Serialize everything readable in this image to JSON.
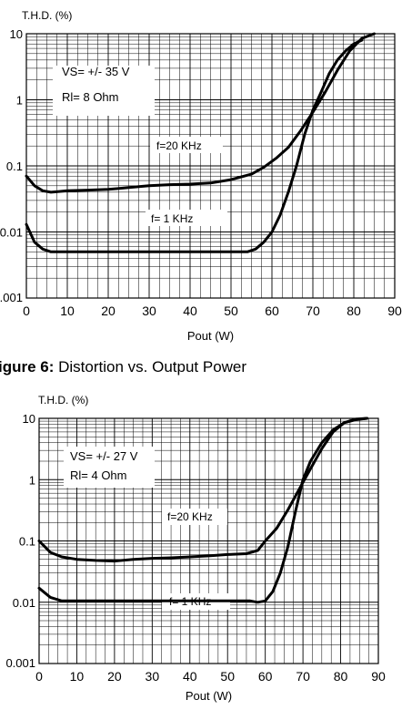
{
  "caption": {
    "label": "igure 6:",
    "text": " Distortion vs. Output Power"
  },
  "chart_data": [
    {
      "type": "line",
      "ylabel": "T.H.D.  (%)",
      "xlabel": "Pout  (W)",
      "xlim": [
        0,
        90
      ],
      "ylim": [
        0.001,
        10
      ],
      "yscale": "log",
      "grid": true,
      "xticks": [
        "0",
        "10",
        "20",
        "30",
        "40",
        "50",
        "60",
        "70",
        "80",
        "90"
      ],
      "yticks": [
        "0.001",
        "0.01",
        "0.1",
        "1",
        "10"
      ],
      "annotations": [
        "VS=  +/- 35 V",
        "Rl=  8 Ohm"
      ],
      "series": [
        {
          "name": "f=20 KHz",
          "x": [
            0,
            2,
            4,
            6,
            8,
            10,
            15,
            20,
            25,
            30,
            35,
            40,
            45,
            50,
            55,
            58,
            61,
            64,
            67,
            70,
            73,
            76,
            79,
            82,
            85
          ],
          "y": [
            0.07,
            0.05,
            0.042,
            0.04,
            0.041,
            0.042,
            0.043,
            0.044,
            0.047,
            0.05,
            0.052,
            0.053,
            0.055,
            0.062,
            0.075,
            0.095,
            0.13,
            0.19,
            0.34,
            0.65,
            1.3,
            2.8,
            5.5,
            8.5,
            10
          ]
        },
        {
          "name": "f= 1 KHz",
          "x": [
            0,
            2,
            4,
            6,
            10,
            20,
            30,
            40,
            50,
            54,
            56,
            58,
            60,
            62,
            64,
            66,
            68,
            70,
            72,
            74,
            76,
            78,
            80,
            82
          ],
          "y": [
            0.013,
            0.007,
            0.0055,
            0.005,
            0.005,
            0.005,
            0.005,
            0.005,
            0.005,
            0.005,
            0.0055,
            0.007,
            0.01,
            0.018,
            0.04,
            0.1,
            0.3,
            0.7,
            1.3,
            2.5,
            4,
            5.5,
            7,
            8
          ]
        }
      ]
    },
    {
      "type": "line",
      "ylabel": "T.H.D.  (%)",
      "xlabel": "Pout  (W)",
      "xlim": [
        0,
        90
      ],
      "ylim": [
        0.001,
        10
      ],
      "yscale": "log",
      "grid": true,
      "xticks": [
        "0",
        "10",
        "20",
        "30",
        "40",
        "50",
        "60",
        "70",
        "80",
        "90"
      ],
      "yticks": [
        "0.001",
        "0.01",
        "0.1",
        "1",
        "10"
      ],
      "annotations": [
        "VS=  +/- 27 V",
        "Rl=  4 Ohm"
      ],
      "series": [
        {
          "name": "f=20 KHz",
          "x": [
            0,
            3,
            6,
            10,
            15,
            20,
            25,
            30,
            35,
            40,
            45,
            50,
            55,
            58,
            60,
            63,
            66,
            69,
            72,
            75,
            78,
            81,
            84,
            87
          ],
          "y": [
            0.1,
            0.065,
            0.055,
            0.05,
            0.048,
            0.047,
            0.05,
            0.052,
            0.053,
            0.055,
            0.057,
            0.06,
            0.062,
            0.07,
            0.1,
            0.16,
            0.32,
            0.7,
            1.5,
            3.2,
            6,
            8.5,
            9.7,
            10
          ]
        },
        {
          "name": "f= 1 KHz",
          "x": [
            0,
            3,
            6,
            10,
            20,
            30,
            40,
            50,
            56,
            58,
            60,
            62,
            64,
            66,
            68,
            70,
            72,
            75,
            78,
            81,
            84,
            87
          ],
          "y": [
            0.017,
            0.012,
            0.0105,
            0.0105,
            0.0105,
            0.0105,
            0.0105,
            0.0105,
            0.0105,
            0.01,
            0.0105,
            0.015,
            0.03,
            0.08,
            0.3,
            1,
            2,
            4,
            6.5,
            8.5,
            9.5,
            10
          ]
        }
      ]
    }
  ]
}
